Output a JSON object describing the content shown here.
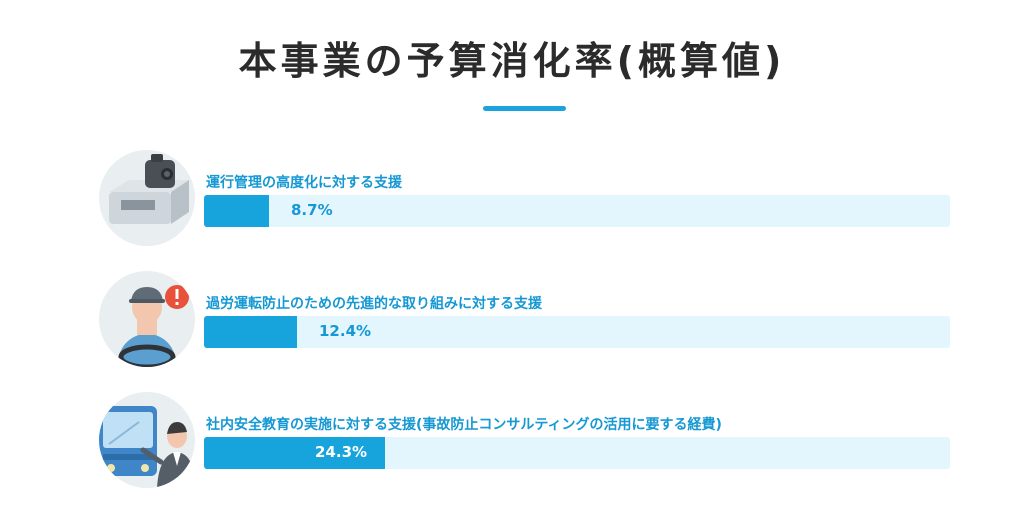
{
  "title": "本事業の予算消化率(概算値)",
  "colors": {
    "accent": "#1aa3dc",
    "bar_fill": "#17a4dd",
    "bar_track": "#e3f5fd",
    "label": "#1598d3",
    "title": "#2b2b2b"
  },
  "items": [
    {
      "label": "運行管理の高度化に対する支援",
      "value_text": "8.7%",
      "percent": 8.7,
      "icon": "dashcam-icon"
    },
    {
      "label": "過労運転防止のための先進的な取り組みに対する支援",
      "value_text": "12.4%",
      "percent": 12.4,
      "icon": "driver-alert-icon"
    },
    {
      "label": "社内安全教育の実施に対する支援(事故防止コンサルティングの活用に要する経費)",
      "value_text": "24.3%",
      "percent": 24.3,
      "icon": "bus-instructor-icon"
    }
  ]
}
